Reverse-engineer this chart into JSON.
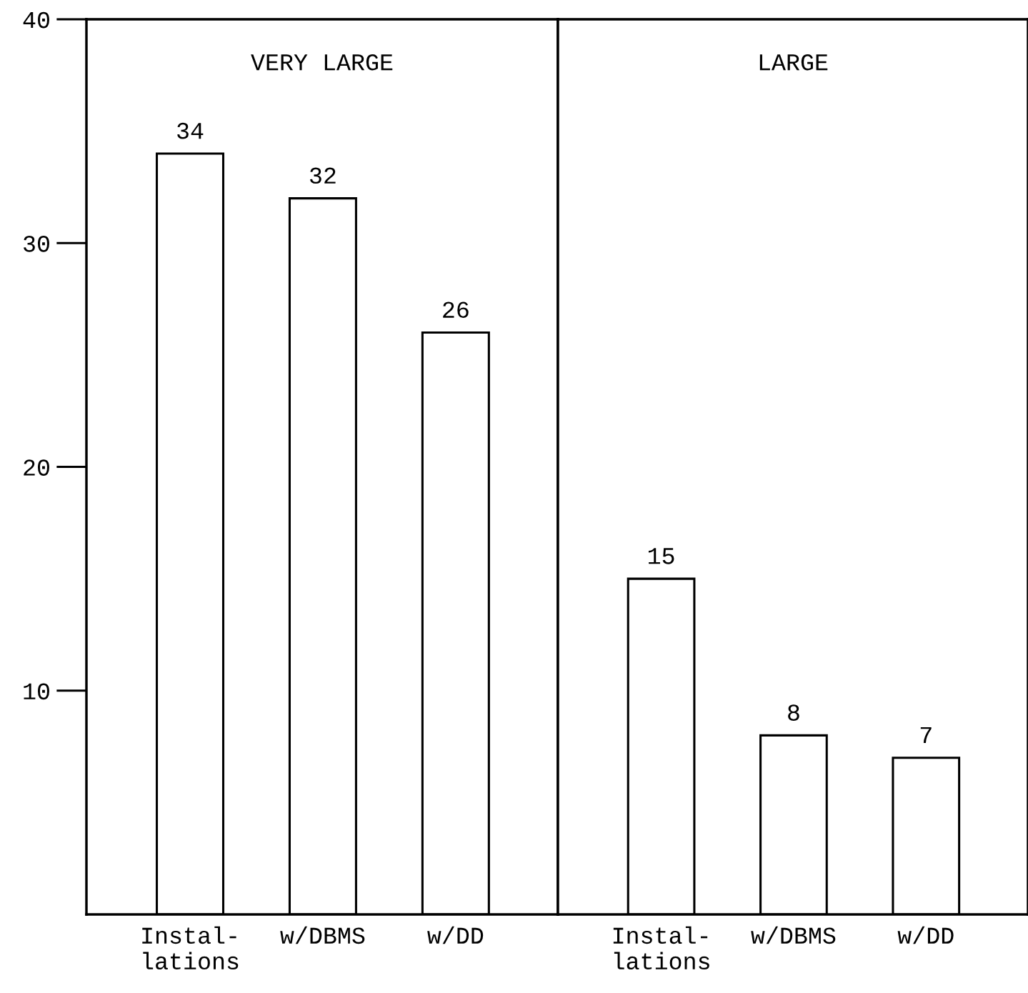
{
  "chart_data": [
    {
      "type": "bar",
      "title": "VERY LARGE",
      "categories": [
        "Instal-\nlations",
        "w/DBMS",
        "w/DD"
      ],
      "values": [
        34,
        32,
        26
      ],
      "color": "#ffffff",
      "ylim": [
        0,
        40
      ],
      "yticks": [
        10,
        20,
        30,
        40
      ],
      "data_labels": true,
      "grid": false
    },
    {
      "type": "bar",
      "title": "LARGE",
      "categories": [
        "Instal-\nlations",
        "w/DBMS",
        "w/DD"
      ],
      "values": [
        15,
        8,
        7
      ],
      "color": "#ffffff",
      "ylim": [
        0,
        40
      ],
      "yticks": [
        10,
        20,
        30,
        40
      ],
      "data_labels": true,
      "grid": false,
      "tick_labels": "x"
    }
  ]
}
